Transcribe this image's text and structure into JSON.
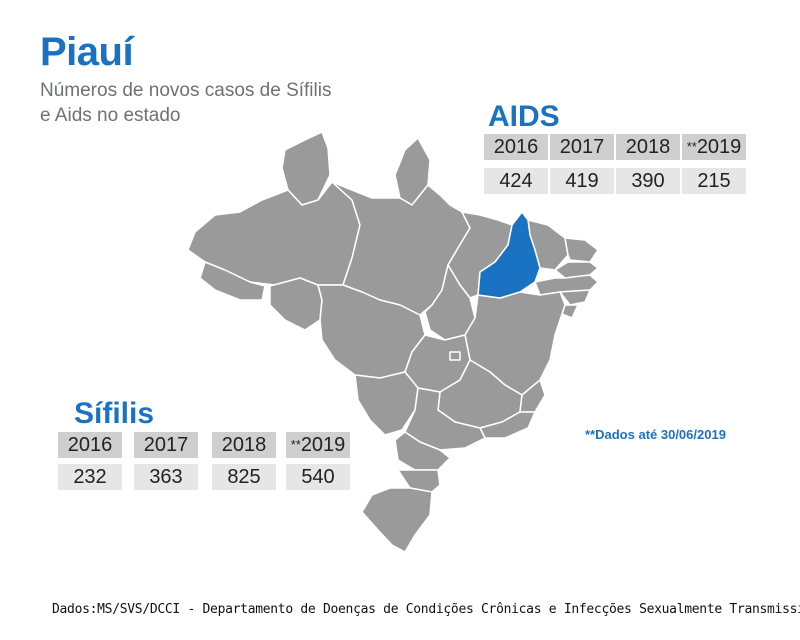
{
  "title": "Piauí",
  "subtitle": "Números de novos casos de Sífilis e Aids no estado",
  "map": {
    "highlighted_state": "Piauí",
    "colors": {
      "states": "#9a9a9a",
      "borders": "#ffffff",
      "highlight": "#1a73c2"
    }
  },
  "aids": {
    "title": "AIDS",
    "years": [
      "2016",
      "2017",
      "2018",
      "2019"
    ],
    "values": [
      "424",
      "419",
      "390",
      "215"
    ]
  },
  "sifilis": {
    "title": "Sífilis",
    "years": [
      "2016",
      "2017",
      "2018",
      "2019"
    ],
    "values": [
      "232",
      "363",
      "825",
      "540"
    ]
  },
  "partial_marker": "**",
  "note": "**Dados até 30/06/2019",
  "source": "Dados:MS/SVS/DCCI - Departamento de Doenças de Condições Crônicas e Infecções Sexualmente Transmissível"
}
